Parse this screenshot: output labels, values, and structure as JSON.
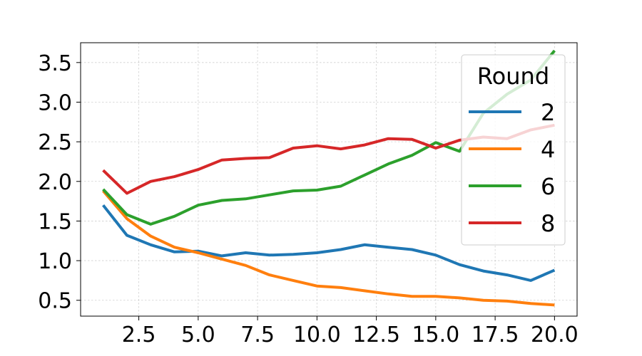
{
  "chart_data": {
    "type": "line",
    "title": "",
    "xlabel": "",
    "ylabel": "",
    "x": [
      1,
      2,
      3,
      4,
      5,
      6,
      7,
      8,
      9,
      10,
      11,
      12,
      13,
      14,
      15,
      16,
      17,
      18,
      19,
      20
    ],
    "xlim": [
      0.05,
      20.95
    ],
    "ylim": [
      0.3,
      3.75
    ],
    "xticks": [
      2.5,
      5.0,
      7.5,
      10.0,
      12.5,
      15.0,
      17.5,
      20.0
    ],
    "xtick_labels": [
      "2.5",
      "5.0",
      "7.5",
      "10.0",
      "12.5",
      "15.0",
      "17.5",
      "20.0"
    ],
    "yticks": [
      0.5,
      1.0,
      1.5,
      2.0,
      2.5,
      3.0,
      3.5
    ],
    "ytick_labels": [
      "0.5",
      "1.0",
      "1.5",
      "2.0",
      "2.5",
      "3.0",
      "3.5"
    ],
    "grid": true,
    "legend": {
      "title": "Round",
      "placement": "top-right"
    },
    "series": [
      {
        "name": "2",
        "color": "#1f77b4",
        "values": [
          1.7,
          1.32,
          1.2,
          1.11,
          1.12,
          1.06,
          1.1,
          1.07,
          1.08,
          1.1,
          1.14,
          1.2,
          1.17,
          1.14,
          1.07,
          0.95,
          0.87,
          0.82,
          0.75,
          0.88
        ]
      },
      {
        "name": "4",
        "color": "#ff7f0e",
        "values": [
          1.88,
          1.53,
          1.31,
          1.17,
          1.1,
          1.02,
          0.94,
          0.82,
          0.75,
          0.68,
          0.66,
          0.62,
          0.58,
          0.55,
          0.55,
          0.53,
          0.5,
          0.49,
          0.46,
          0.44
        ]
      },
      {
        "name": "6",
        "color": "#2ca02c",
        "values": [
          1.9,
          1.58,
          1.46,
          1.56,
          1.7,
          1.76,
          1.78,
          1.83,
          1.88,
          1.89,
          1.94,
          2.08,
          2.22,
          2.33,
          2.49,
          2.38,
          2.86,
          3.1,
          3.28,
          3.65
        ]
      },
      {
        "name": "8",
        "color": "#d62728",
        "values": [
          2.14,
          1.85,
          2.0,
          2.06,
          2.15,
          2.27,
          2.29,
          2.3,
          2.42,
          2.45,
          2.41,
          2.46,
          2.54,
          2.53,
          2.42,
          2.52,
          2.56,
          2.54,
          2.65,
          2.71
        ]
      }
    ]
  }
}
